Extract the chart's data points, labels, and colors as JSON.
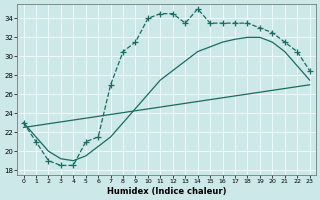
{
  "xlabel": "Humidex (Indice chaleur)",
  "bg_color": "#cce8e8",
  "line_color": "#1a6b60",
  "xlim": [
    -0.5,
    23.5
  ],
  "ylim": [
    17.5,
    35.5
  ],
  "xticks": [
    0,
    1,
    2,
    3,
    4,
    5,
    6,
    7,
    8,
    9,
    10,
    11,
    12,
    13,
    14,
    15,
    16,
    17,
    18,
    19,
    20,
    21,
    22,
    23
  ],
  "yticks": [
    18,
    20,
    22,
    24,
    26,
    28,
    30,
    32,
    34
  ],
  "curve1_x": [
    0,
    1,
    2,
    3,
    4,
    5,
    6,
    7,
    8,
    9,
    10,
    11,
    12,
    13,
    14,
    15,
    16,
    17,
    18,
    19,
    20,
    21,
    22,
    23
  ],
  "curve1_y": [
    23.0,
    21.0,
    19.0,
    18.5,
    18.5,
    21.0,
    21.5,
    27.0,
    30.5,
    31.5,
    34.0,
    34.5,
    34.5,
    33.5,
    35.0,
    33.5,
    33.5,
    33.5,
    33.5,
    33.0,
    32.5,
    31.5,
    30.5,
    28.5
  ],
  "curve2_x": [
    0,
    1,
    2,
    3,
    4,
    5,
    6,
    7,
    8,
    9,
    10,
    11,
    12,
    13,
    14,
    15,
    16,
    17,
    18,
    19,
    20,
    21,
    22,
    23
  ],
  "curve2_y": [
    23.0,
    21.5,
    20.0,
    19.2,
    19.0,
    19.5,
    20.5,
    21.5,
    23.0,
    24.5,
    26.0,
    27.5,
    28.5,
    29.5,
    30.5,
    31.0,
    31.5,
    31.8,
    32.0,
    32.0,
    31.5,
    30.5,
    29.0,
    27.5
  ],
  "line3_x": [
    0,
    23
  ],
  "line3_y": [
    22.5,
    27.0
  ]
}
